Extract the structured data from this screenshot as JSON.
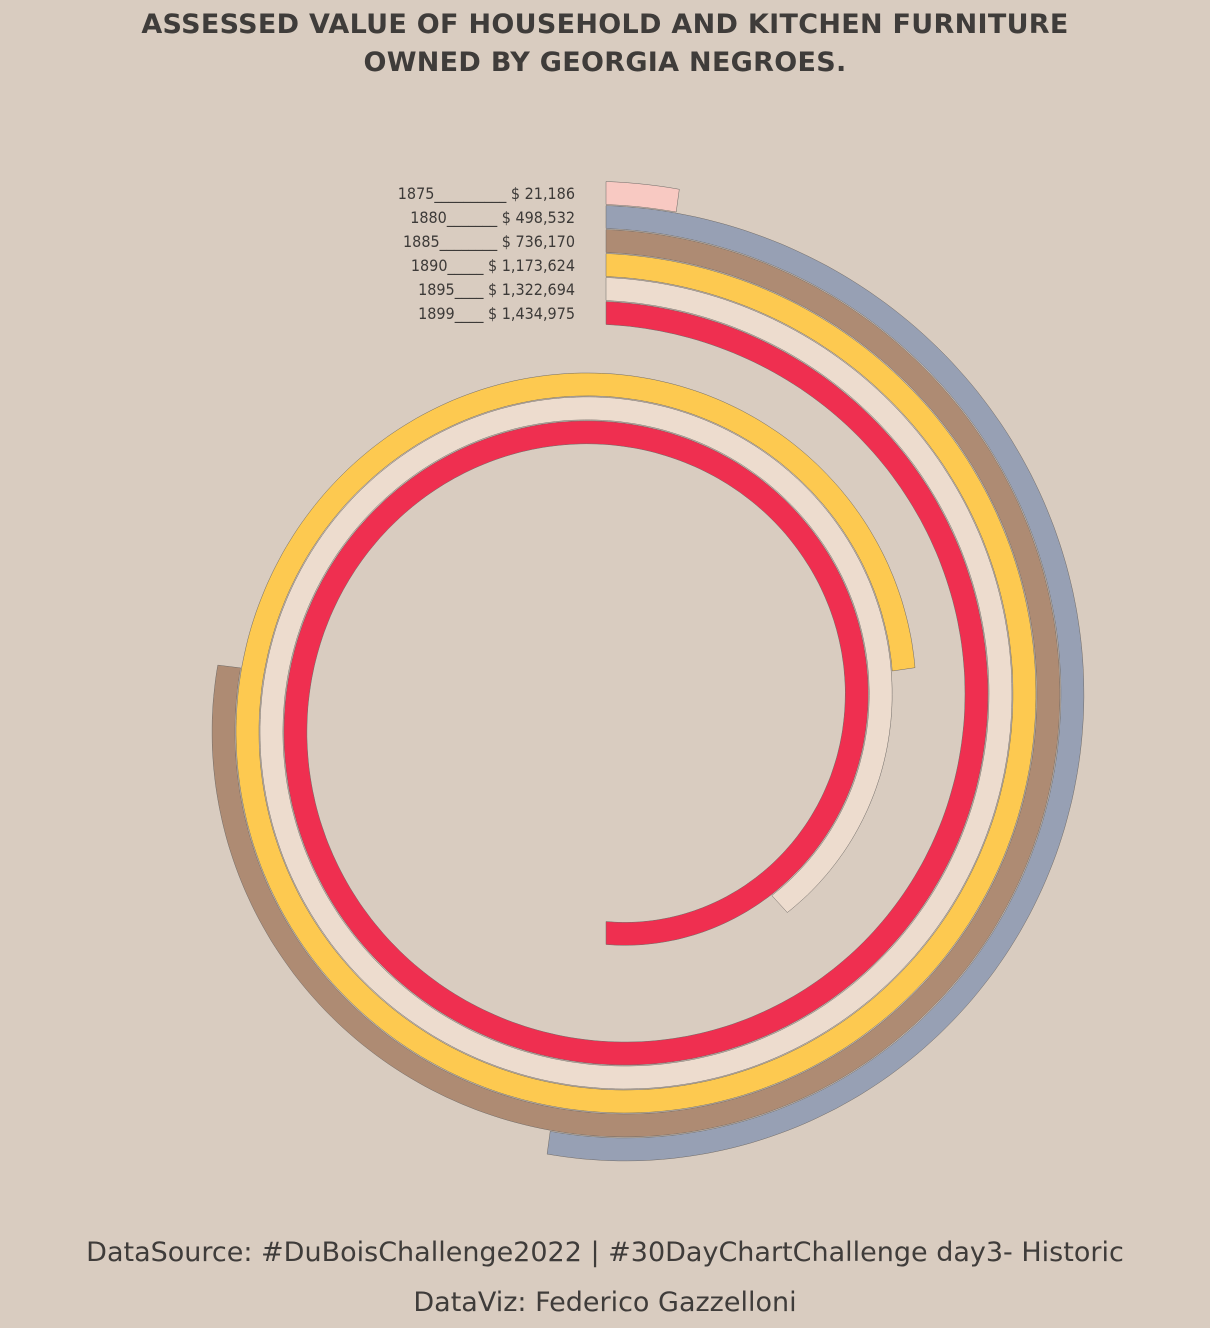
{
  "title": {
    "line1": "ASSESSED VALUE OF HOUSEHOLD AND KITCHEN FURNITURE",
    "line2": "OWNED BY GEORGIA NEGROES."
  },
  "caption": {
    "line1": "DataSource: #DuBoisChallenge2022 | #30DayChartChallenge day3- Historic",
    "line2": "DataViz: Federico Gazzelloni"
  },
  "chart_data": {
    "type": "spiral-bar",
    "x_label": "year",
    "y_label": "assessed value ($)",
    "series": [
      {
        "year": "1875",
        "value": 21186,
        "value_label": "$ 21,186",
        "color": "#f8c9c2",
        "legend": "1875__________ $ 21,186"
      },
      {
        "year": "1880",
        "value": 498532,
        "value_label": "$ 498,532",
        "color": "#97a0b4",
        "legend": "1880_______ $ 498,532"
      },
      {
        "year": "1885",
        "value": 736170,
        "value_label": "$ 736,170",
        "color": "#ae8b73",
        "legend": "1885________ $ 736,170"
      },
      {
        "year": "1890",
        "value": 1173624,
        "value_label": "$ 1,173,624",
        "color": "#fdc950",
        "legend": "1890_____ $ 1,173,624"
      },
      {
        "year": "1895",
        "value": 1322694,
        "value_label": "$ 1,322,694",
        "color": "#eddcce",
        "legend": "1895____ $ 1,322,694"
      },
      {
        "year": "1899",
        "value": 1434975,
        "value_label": "$ 1,434,975",
        "color": "#ef2f50",
        "legend": "1899____ $ 1,434,975"
      }
    ]
  }
}
